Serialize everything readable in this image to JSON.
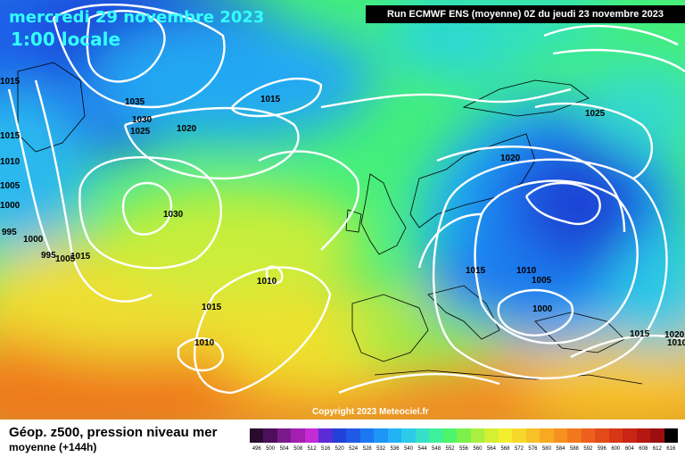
{
  "header": {
    "date": "mercredi 29 novembre 2023",
    "hour": "1:00 locale",
    "run": "Run ECMWF ENS (moyenne) 0Z du jeudi 23 novembre 2023"
  },
  "copyright": "Copyright 2023 Meteociel.fr",
  "legend": {
    "title": "Géop. z500, pression niveau mer",
    "subtitle": "moyenne   (+144h)",
    "scale_values": [
      "496",
      "500",
      "504",
      "508",
      "512",
      "516",
      "520",
      "524",
      "528",
      "532",
      "536",
      "540",
      "544",
      "548",
      "552",
      "556",
      "560",
      "564",
      "568",
      "572",
      "576",
      "580",
      "584",
      "588",
      "592",
      "596",
      "600",
      "604",
      "608",
      "612",
      "616"
    ],
    "scale_colors": [
      "#2a0b2e",
      "#4d0f5a",
      "#7a1a8c",
      "#a21fb2",
      "#c42bd3",
      "#5b2bd6",
      "#2340d8",
      "#1f5ae6",
      "#1c78f0",
      "#1d96f5",
      "#22b2f5",
      "#2ccbe8",
      "#36e0c8",
      "#3ff09a",
      "#4cf56a",
      "#7cf14c",
      "#a9ef3f",
      "#d4ef34",
      "#f3ee2e",
      "#f6d82b",
      "#f7c127",
      "#f7a924",
      "#f69121",
      "#f2781e",
      "#ec601b",
      "#e34a19",
      "#d83616",
      "#c92514",
      "#b51812",
      "#9e0e10",
      "#000000"
    ]
  },
  "isobars": {
    "labels": [
      "1035",
      "1030",
      "1025",
      "1020",
      "1015",
      "1015",
      "1030",
      "1000",
      "1015",
      "1010",
      "1015",
      "1010",
      "1020",
      "1025",
      "1015",
      "1010",
      "1005",
      "1000",
      "1015",
      "1020",
      "1015",
      "1010",
      "1005",
      "1000",
      "995",
      "995",
      "1005",
      "1010"
    ]
  }
}
